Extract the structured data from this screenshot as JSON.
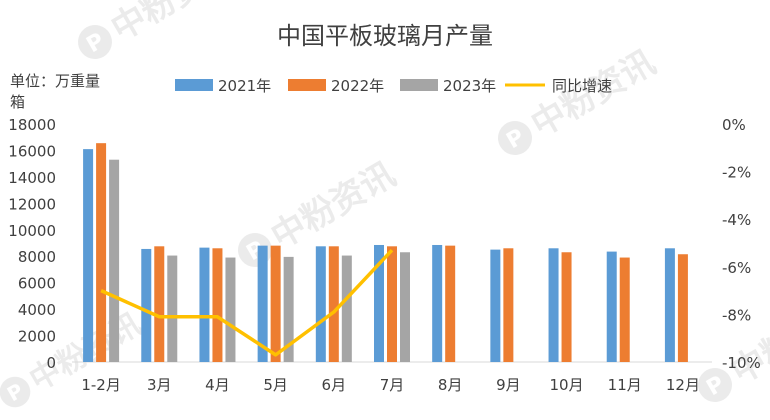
{
  "watermark": "中粉资讯",
  "chart_data": {
    "type": "bar",
    "title": "中国平板玻璃月产量",
    "ylabel": "单位：万重量箱",
    "categories": [
      "1-2月",
      "3月",
      "4月",
      "5月",
      "6月",
      "7月",
      "8月",
      "9月",
      "10月",
      "11月",
      "12月"
    ],
    "series": [
      {
        "name": "2021年",
        "type": "bar",
        "color": "#5b9bd5",
        "values": [
          16100,
          8550,
          8650,
          8800,
          8750,
          8850,
          8850,
          8500,
          8600,
          8350,
          8600
        ]
      },
      {
        "name": "2022年",
        "type": "bar",
        "color": "#ed7d31",
        "values": [
          16550,
          8750,
          8600,
          8800,
          8750,
          8750,
          8800,
          8600,
          8300,
          7900,
          8150
        ]
      },
      {
        "name": "2023年",
        "type": "bar",
        "color": "#a5a5a5",
        "values": [
          15300,
          8050,
          7900,
          7950,
          8050,
          8300,
          null,
          null,
          null,
          null,
          null
        ]
      },
      {
        "name": "同比增速",
        "type": "line",
        "axis": "right",
        "color": "#ffc000",
        "values": [
          -7.0,
          -8.1,
          -8.1,
          -9.7,
          -7.9,
          -5.3,
          null,
          null,
          null,
          null,
          null
        ]
      }
    ],
    "ylim": [
      0,
      18000
    ],
    "yticks": [
      0,
      2000,
      4000,
      6000,
      8000,
      10000,
      12000,
      14000,
      16000,
      18000
    ],
    "y2lim": [
      -10,
      0
    ],
    "y2ticks": [
      "0%",
      "-2%",
      "-4%",
      "-6%",
      "-8%",
      "-10%"
    ],
    "legend_position": "top",
    "grid": false
  }
}
